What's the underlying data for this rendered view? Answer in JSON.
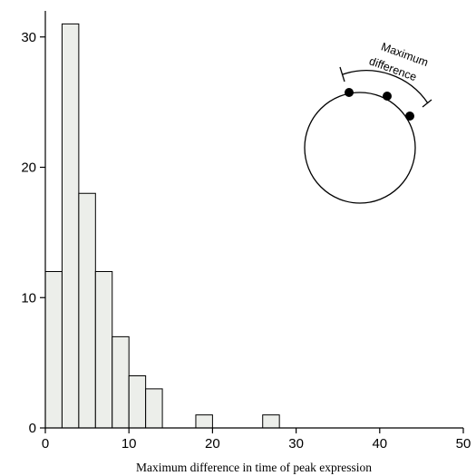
{
  "chart_data": {
    "type": "bar",
    "xlabel": "Maximum difference in time of peak expression",
    "ylabel": "",
    "xlim": [
      0,
      50
    ],
    "ylim": [
      0,
      32
    ],
    "x_ticks": [
      0,
      10,
      20,
      30,
      40,
      50
    ],
    "y_ticks": [
      0,
      10,
      20,
      30
    ],
    "bin_width": 2,
    "bins": [
      {
        "start": 0,
        "end": 2,
        "count": 12
      },
      {
        "start": 2,
        "end": 4,
        "count": 31
      },
      {
        "start": 4,
        "end": 6,
        "count": 18
      },
      {
        "start": 6,
        "end": 8,
        "count": 12
      },
      {
        "start": 8,
        "end": 10,
        "count": 7
      },
      {
        "start": 10,
        "end": 12,
        "count": 4
      },
      {
        "start": 12,
        "end": 14,
        "count": 3
      },
      {
        "start": 18,
        "end": 20,
        "count": 1
      },
      {
        "start": 26,
        "end": 28,
        "count": 1
      }
    ],
    "inset": {
      "label_line1": "Maximum",
      "label_line2": "difference"
    }
  },
  "colors": {
    "bar_fill": "#eceeea",
    "stroke": "#000000"
  }
}
